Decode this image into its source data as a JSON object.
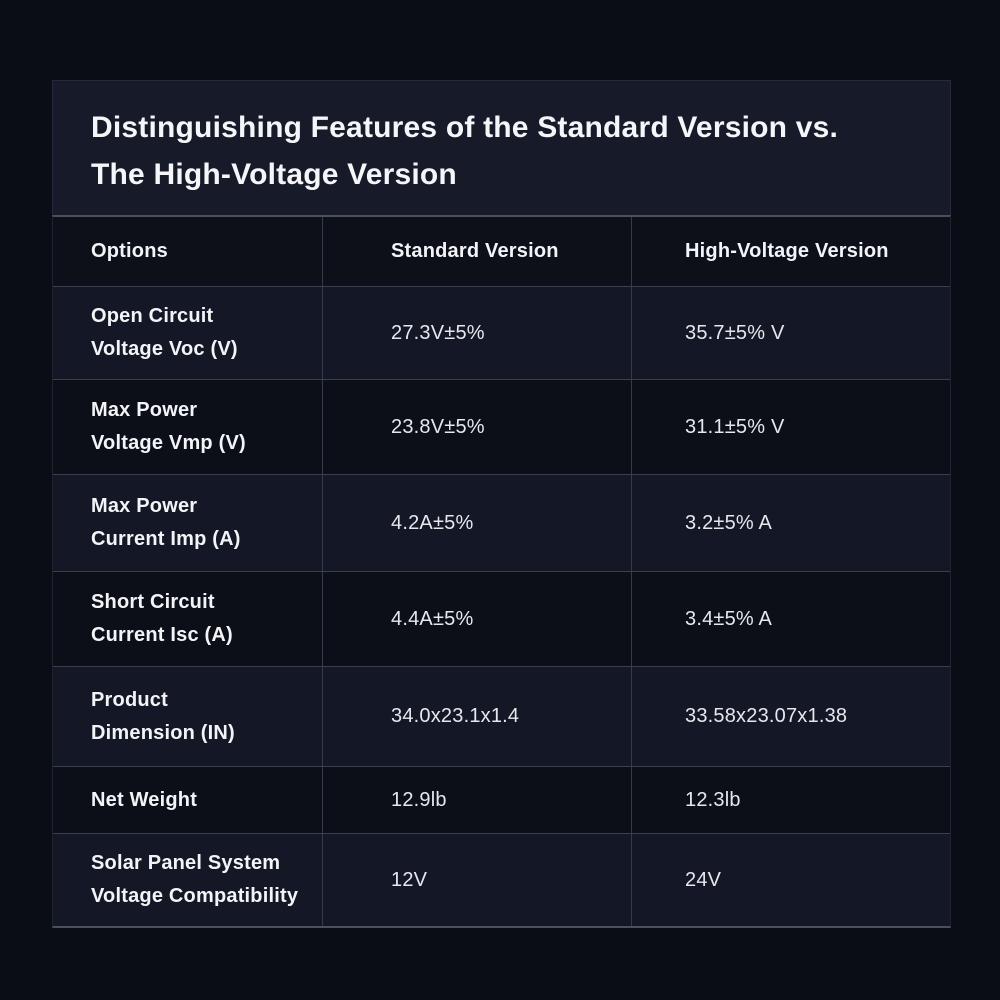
{
  "card": {
    "title_lines": [
      "Distinguishing Features of the Standard Version vs.",
      "The High-Voltage Version"
    ]
  },
  "table": {
    "columns": [
      "Options",
      "Standard Version",
      "High-Voltage Version"
    ],
    "rows": [
      {
        "option": [
          "Open Circuit",
          "Voltage Voc (V)"
        ],
        "standard": "27.3V±5%",
        "high_voltage": "35.7±5% V"
      },
      {
        "option": [
          "Max Power",
          "Voltage Vmp (V)"
        ],
        "standard": "23.8V±5%",
        "high_voltage": "31.1±5% V"
      },
      {
        "option": [
          "Max Power",
          "Current Imp (A)"
        ],
        "standard": "4.2A±5%",
        "high_voltage": "3.2±5% A"
      },
      {
        "option": [
          "Short Circuit",
          "Current Isc (A)"
        ],
        "standard": "4.4A±5%",
        "high_voltage": "3.4±5% A"
      },
      {
        "option": [
          "Product",
          "Dimension (IN)"
        ],
        "standard": "34.0x23.1x1.4",
        "high_voltage": "33.58x23.07x1.38"
      },
      {
        "option": [
          "Net Weight"
        ],
        "standard": "12.9lb",
        "high_voltage": "12.3lb"
      },
      {
        "option": [
          "Solar Panel System",
          "Voltage Compatibility"
        ],
        "standard": "12V",
        "high_voltage": "24V"
      }
    ]
  },
  "chart_data": {
    "type": "table",
    "title": "Distinguishing Features of the Standard Version vs. The High-Voltage Version",
    "columns": [
      "Options",
      "Standard Version",
      "High-Voltage Version"
    ],
    "rows": [
      [
        "Open Circuit Voltage Voc (V)",
        "27.3V±5%",
        "35.7±5% V"
      ],
      [
        "Max Power Voltage Vmp (V)",
        "23.8V±5%",
        "31.1±5% V"
      ],
      [
        "Max Power Current Imp (A)",
        "4.2A±5%",
        "3.2±5% A"
      ],
      [
        "Short Circuit Current Isc (A)",
        "4.4A±5%",
        "3.4±5% A"
      ],
      [
        "Product Dimension (IN)",
        "34.0x23.1x1.4",
        "33.58x23.07x1.38"
      ],
      [
        "Net Weight",
        "12.9lb",
        "12.3lb"
      ],
      [
        "Solar Panel System Voltage Compatibility",
        "12V",
        "24V"
      ]
    ]
  },
  "colors": {
    "page_background": "#0a0d16",
    "title_block_background": "#171b29",
    "header_row_background": "#0d1019",
    "row_odd_background": "#141826",
    "row_even_background": "#0c0f18",
    "grid_line": "#3a4050",
    "outer_table_line": "#4a505e",
    "heading_text": "#f4f6f9",
    "value_text": "#e6e8ed"
  }
}
